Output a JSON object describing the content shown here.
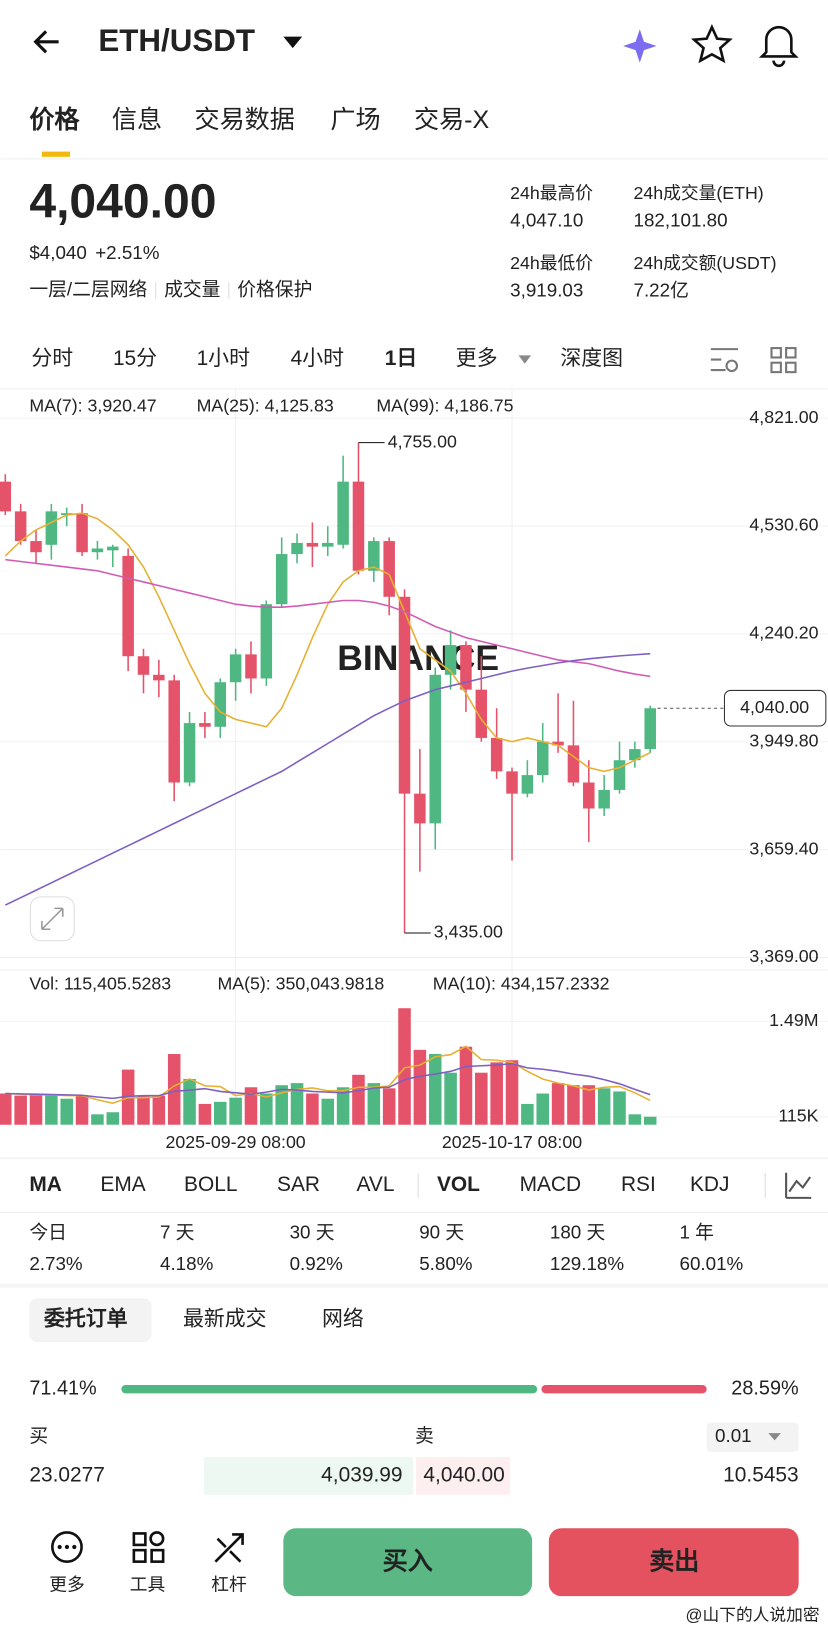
{
  "header": {
    "pair": "ETH/USDT"
  },
  "tabs": [
    "价格",
    "信息",
    "交易数据",
    "广场",
    "交易-X"
  ],
  "price": {
    "last": "4,040.00",
    "usd": "$4,040",
    "change": "+2.51%",
    "tags": [
      "一层/二层网络",
      "成交量",
      "价格保护"
    ]
  },
  "stats": [
    {
      "label": "24h最高价",
      "value": "4,047.10"
    },
    {
      "label": "24h成交量(ETH)",
      "value": "182,101.80"
    },
    {
      "label": "24h最低价",
      "value": "3,919.03"
    },
    {
      "label": "24h成交额(USDT)",
      "value": "7.22亿"
    }
  ],
  "intervals": [
    "分时",
    "15分",
    "1小时",
    "4小时",
    "1日",
    "更多",
    "深度图"
  ],
  "chart_data": [
    {
      "type": "candlestick",
      "watermark": "BINANCE",
      "up_color": "#4fb882",
      "down_color": "#e4536a",
      "open": [
        4650,
        4570,
        4490,
        4480,
        4560,
        4565,
        4460,
        4465,
        4450,
        4180,
        4130,
        4115,
        3840,
        4000,
        3990,
        4110,
        4185,
        4120,
        4320,
        4455,
        4485,
        4475,
        4480,
        4650,
        4410,
        4490,
        4340,
        3810,
        3730,
        4130,
        4210,
        4090,
        3960,
        3870,
        3810,
        3860,
        3950,
        3940,
        3840,
        3770,
        3820,
        3900,
        3930
      ],
      "high": [
        4670,
        4590,
        4520,
        4590,
        4580,
        4590,
        4490,
        4480,
        4470,
        4200,
        4170,
        4130,
        4030,
        4030,
        4120,
        4200,
        4220,
        4330,
        4500,
        4510,
        4540,
        4530,
        4720,
        4755,
        4500,
        4500,
        4360,
        3930,
        4150,
        4250,
        4220,
        4180,
        4040,
        3880,
        3900,
        4000,
        4080,
        4060,
        3900,
        3860,
        3950,
        3950,
        4047
      ],
      "low": [
        4560,
        4480,
        4430,
        4440,
        4530,
        4450,
        4440,
        4420,
        4140,
        4080,
        4070,
        3790,
        3830,
        3960,
        3960,
        4060,
        4080,
        4100,
        4310,
        4430,
        4420,
        4450,
        4470,
        4400,
        4380,
        4290,
        3435,
        3600,
        3660,
        4090,
        4030,
        3950,
        3850,
        3630,
        3800,
        3840,
        3920,
        3830,
        3680,
        3750,
        3810,
        3880,
        3920
      ],
      "close": [
        4570,
        4490,
        4460,
        4570,
        4565,
        4460,
        4470,
        4475,
        4180,
        4130,
        4115,
        3840,
        4000,
        3990,
        4110,
        4185,
        4120,
        4320,
        4455,
        4485,
        4475,
        4485,
        4650,
        4410,
        4490,
        4340,
        3810,
        3730,
        4130,
        4210,
        4090,
        3960,
        3870,
        3810,
        3860,
        3950,
        3940,
        3840,
        3770,
        3820,
        3900,
        3930,
        4040
      ],
      "series": [
        {
          "name": "MA(7): 3,920.47",
          "color": "#e6b030",
          "values": [
            4450,
            4490,
            4520,
            4540,
            4560,
            4565,
            4550,
            4520,
            4480,
            4420,
            4340,
            4250,
            4160,
            4080,
            4030,
            4010,
            4000,
            3990,
            4040,
            4130,
            4230,
            4320,
            4380,
            4410,
            4420,
            4400,
            4300,
            4200,
            4170,
            4140,
            4080,
            4010,
            3960,
            3950,
            3960,
            3950,
            3940,
            3910,
            3880,
            3870,
            3880,
            3900,
            3920.47
          ]
        },
        {
          "name": "MA(25): 4,125.83",
          "color": "#d25bb2",
          "values": [
            4440,
            4435,
            4430,
            4425,
            4420,
            4415,
            4410,
            4400,
            4390,
            4380,
            4370,
            4360,
            4350,
            4340,
            4330,
            4320,
            4315,
            4312,
            4312,
            4315,
            4320,
            4325,
            4330,
            4330,
            4325,
            4315,
            4300,
            4280,
            4260,
            4245,
            4230,
            4220,
            4210,
            4200,
            4190,
            4180,
            4170,
            4165,
            4160,
            4150,
            4140,
            4132,
            4125.83
          ]
        },
        {
          "name": "MA(99): 4,186.75",
          "color": "#7e5fc2",
          "values": [
            3510,
            3530,
            3550,
            3570,
            3590,
            3610,
            3630,
            3650,
            3670,
            3690,
            3710,
            3730,
            3750,
            3770,
            3790,
            3810,
            3830,
            3850,
            3870,
            3895,
            3920,
            3945,
            3970,
            3995,
            4020,
            4040,
            4060,
            4075,
            4090,
            4100,
            4110,
            4120,
            4130,
            4140,
            4148,
            4155,
            4162,
            4168,
            4173,
            4177,
            4181,
            4184,
            4186.75
          ]
        }
      ],
      "ylim": [
        3369,
        4821
      ],
      "yticks": [
        {
          "value": 3369,
          "label": "3,369.00"
        },
        {
          "value": 3659.4,
          "label": "3,659.40"
        },
        {
          "value": 3949.8,
          "label": "3,949.80"
        },
        {
          "value": 4240.2,
          "label": "4,240.20"
        },
        {
          "value": 4530.6,
          "label": "4,530.60"
        },
        {
          "value": 4821,
          "label": "4,821.00"
        }
      ],
      "grid": true,
      "max_label": "4,755.00",
      "min_label": "3,435.00",
      "last_price": {
        "value": 4040,
        "label": "4,040.00"
      }
    },
    {
      "type": "bar",
      "title": "Vol: 115,405.5283",
      "categories": [
        null,
        null,
        null,
        null,
        null,
        null,
        null,
        null,
        null,
        null,
        null,
        null,
        null,
        null,
        null,
        "2025-09-29 08:00",
        null,
        null,
        null,
        null,
        null,
        null,
        null,
        null,
        null,
        null,
        null,
        null,
        null,
        null,
        null,
        null,
        null,
        "2025-10-17 08:00",
        null,
        null,
        null,
        null,
        null,
        null,
        null,
        null,
        null
      ],
      "values": [
        450000,
        420000,
        450000,
        420000,
        375000,
        420000,
        150000,
        180000,
        795000,
        420000,
        420000,
        1020000,
        660000,
        300000,
        330000,
        390000,
        540000,
        450000,
        570000,
        600000,
        450000,
        375000,
        540000,
        720000,
        600000,
        525000,
        1680000,
        1080000,
        1020000,
        750000,
        1125000,
        750000,
        900000,
        930000,
        300000,
        450000,
        600000,
        570000,
        570000,
        525000,
        480000,
        150000,
        115405.5283
      ],
      "series": [
        {
          "name": "MA(5): 350,043.9818",
          "color": "#e6b030",
          "values": [
            450000,
            440000,
            430000,
            430000,
            420000,
            420000,
            360000,
            310000,
            390000,
            390000,
            400000,
            560000,
            660000,
            560000,
            550000,
            420000,
            450000,
            400000,
            460000,
            510000,
            530000,
            490000,
            490000,
            540000,
            540000,
            560000,
            820000,
            860000,
            980000,
            1010000,
            1130000,
            940000,
            930000,
            900000,
            770000,
            660000,
            600000,
            560000,
            500000,
            540000,
            550000,
            460000,
            350043.9818
          ]
        },
        {
          "name": "MA(10): 434,157.2332",
          "color": "#7e5fc2",
          "values": [
            450000,
            445000,
            440000,
            435000,
            430000,
            425000,
            400000,
            380000,
            410000,
            420000,
            420000,
            480000,
            500000,
            520000,
            480000,
            460000,
            440000,
            470000,
            510000,
            500000,
            480000,
            470000,
            460000,
            490000,
            530000,
            540000,
            650000,
            700000,
            730000,
            770000,
            840000,
            850000,
            860000,
            880000,
            820000,
            800000,
            770000,
            730000,
            700000,
            650000,
            590000,
            510000,
            434157.2332
          ]
        }
      ],
      "ylim": [
        0,
        2050000
      ],
      "yticks": [
        {
          "value": 115000,
          "label": "115K"
        },
        {
          "value": 1490000,
          "label": "1.49M"
        }
      ]
    }
  ],
  "indicators": [
    "MA",
    "EMA",
    "BOLL",
    "SAR",
    "AVL",
    "VOL",
    "MACD",
    "RSI",
    "KDJ"
  ],
  "performance": [
    {
      "period": "今日",
      "change": "2.73%"
    },
    {
      "period": "7 天",
      "change": "4.18%"
    },
    {
      "period": "30 天",
      "change": "0.92%"
    },
    {
      "period": "90 天",
      "change": "5.80%"
    },
    {
      "period": "180 天",
      "change": "129.18%"
    },
    {
      "period": "1 年",
      "change": "60.01%"
    }
  ],
  "book_tabs": [
    "委托订单",
    "最新成交",
    "网络"
  ],
  "ratio": {
    "values": [
      71.41,
      28.59
    ],
    "value_labels": [
      "71.41%",
      "28.59%"
    ],
    "colors": [
      "#4fb882",
      "#e4536a"
    ]
  },
  "book": {
    "buy": "买",
    "sell": "卖",
    "precision": "0.01",
    "rows": [
      [
        "23.0277",
        "4,039.99",
        "4,040.00",
        "10.5453"
      ]
    ]
  },
  "footer": {
    "tools": [
      "更多",
      "工具",
      "杠杆"
    ],
    "buy": "买入",
    "sell": "卖出",
    "watermark": "@山下的人说加密"
  }
}
